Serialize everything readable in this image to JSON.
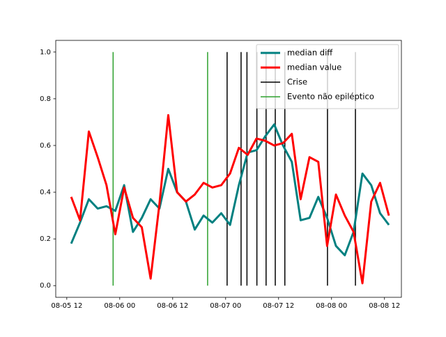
{
  "chart_data": {
    "type": "line",
    "x": [
      "08-05 13:00",
      "08-05 15:00",
      "08-05 17:00",
      "08-05 19:00",
      "08-05 21:00",
      "08-05 23:00",
      "08-06 01:00",
      "08-06 03:00",
      "08-06 05:00",
      "08-06 07:00",
      "08-06 09:00",
      "08-06 11:00",
      "08-06 13:00",
      "08-06 15:00",
      "08-06 17:00",
      "08-06 19:00",
      "08-06 21:00",
      "08-06 23:00",
      "08-07 01:00",
      "08-07 03:00",
      "08-07 05:00",
      "08-07 07:00",
      "08-07 09:00",
      "08-07 11:00",
      "08-07 13:00",
      "08-07 15:00",
      "08-07 17:00",
      "08-07 19:00",
      "08-07 21:00",
      "08-07 23:00",
      "08-08 01:00",
      "08-08 03:00",
      "08-08 05:00",
      "08-08 07:00",
      "08-08 09:00",
      "08-08 11:00",
      "08-08 13:00"
    ],
    "series": [
      {
        "name": "median diff",
        "color": "#008080",
        "values": [
          0.18,
          0.27,
          0.37,
          0.33,
          0.34,
          0.32,
          0.43,
          0.23,
          0.29,
          0.37,
          0.33,
          0.5,
          0.4,
          0.36,
          0.24,
          0.3,
          0.27,
          0.31,
          0.26,
          0.43,
          0.57,
          0.58,
          0.64,
          0.69,
          0.6,
          0.53,
          0.28,
          0.29,
          0.38,
          0.29,
          0.17,
          0.13,
          0.23,
          0.48,
          0.43,
          0.31,
          0.26
        ]
      },
      {
        "name": "median value",
        "color": "#ff0000",
        "values": [
          0.38,
          0.28,
          0.66,
          0.55,
          0.43,
          0.22,
          0.42,
          0.29,
          0.25,
          0.03,
          0.35,
          0.73,
          0.4,
          0.36,
          0.39,
          0.44,
          0.42,
          0.43,
          0.48,
          0.59,
          0.56,
          0.63,
          0.62,
          0.6,
          0.61,
          0.65,
          0.37,
          0.55,
          0.53,
          0.17,
          0.39,
          0.3,
          0.23,
          0.01,
          0.36,
          0.44,
          0.3
        ]
      }
    ],
    "vlines": [
      {
        "name": "Crise",
        "color": "#000000",
        "ymin": 0,
        "ymax": 1,
        "x": [
          "08-07 00:20",
          "08-07 03:30",
          "08-07 04:50",
          "08-07 07:05",
          "08-07 09:10",
          "08-07 11:15",
          "08-07 13:25",
          "08-07 23:05",
          "08-08 05:25"
        ]
      },
      {
        "name": "Evento não epiléptico",
        "color": "#2ca02c",
        "ymin": 0,
        "ymax": 1,
        "x": [
          "08-05 22:30",
          "08-06 19:55"
        ]
      }
    ],
    "xlim": [
      "08-05 09:30",
      "08-08 15:50"
    ],
    "xticks": [
      {
        "value": "08-05 12:00",
        "label": "08-05 12"
      },
      {
        "value": "08-06 00:00",
        "label": "08-06 00"
      },
      {
        "value": "08-06 12:00",
        "label": "08-06 12"
      },
      {
        "value": "08-07 00:00",
        "label": "08-07 00"
      },
      {
        "value": "08-07 12:00",
        "label": "08-07 12"
      },
      {
        "value": "08-08 00:00",
        "label": "08-08 00"
      },
      {
        "value": "08-08 12:00",
        "label": "08-08 12"
      }
    ],
    "ylim": [
      -0.05,
      1.05
    ],
    "yticks": [
      {
        "value": 0,
        "label": "0.0"
      },
      0.2,
      0.4,
      0.6,
      0.8,
      {
        "value": 1,
        "label": "1.0"
      }
    ],
    "legend": "upper right"
  }
}
